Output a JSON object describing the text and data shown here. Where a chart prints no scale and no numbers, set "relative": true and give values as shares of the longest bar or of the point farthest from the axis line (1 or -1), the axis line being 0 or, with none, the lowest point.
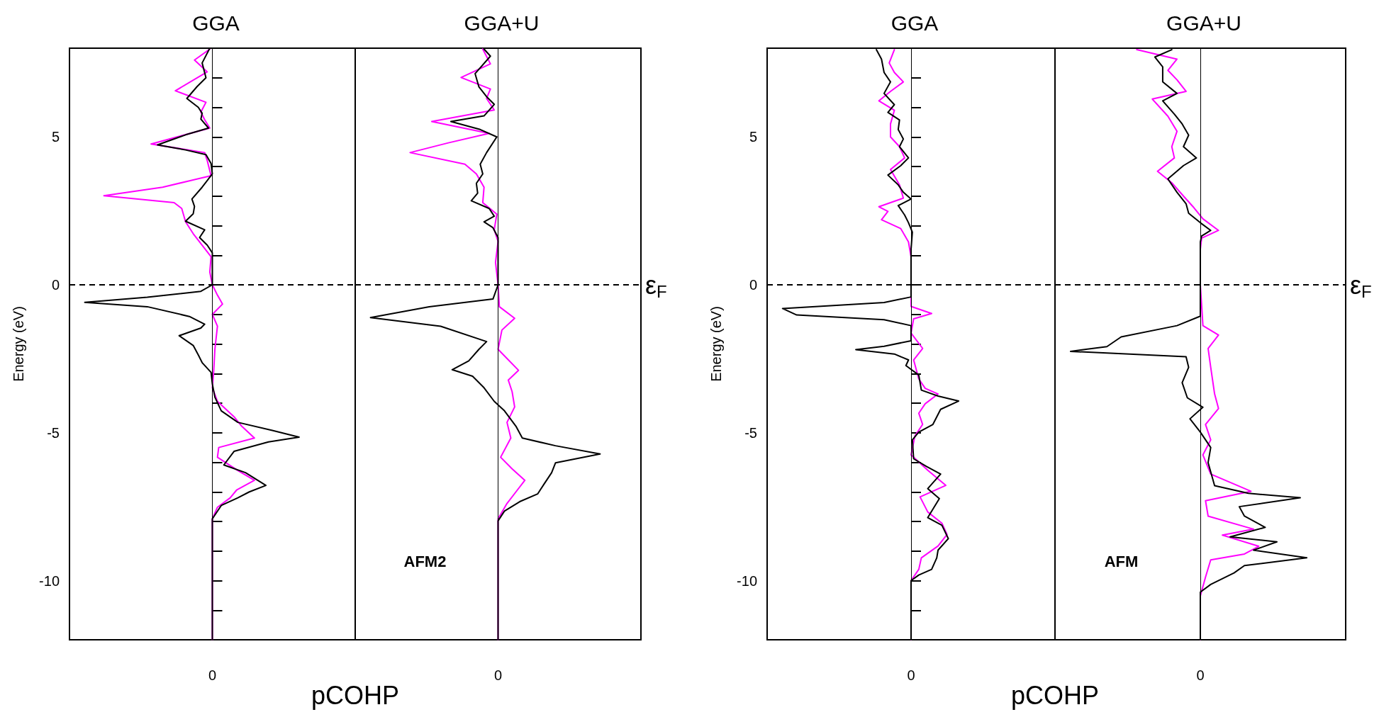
{
  "chart_data": [
    {
      "type": "line",
      "orientation": "horizontal",
      "relative": true,
      "title": "GGA",
      "ylabel": "Energy (eV)",
      "xlabel": "pCOHP",
      "ylim": [
        -12,
        8
      ],
      "yticks": [
        {
          "value": -11,
          "label": null
        },
        -10,
        {
          "value": -9,
          "label": null
        },
        {
          "value": -8,
          "label": null
        },
        {
          "value": -7,
          "label": null
        },
        {
          "value": -6,
          "label": null
        },
        -5,
        {
          "value": -4,
          "label": null
        },
        {
          "value": -3,
          "label": null
        },
        {
          "value": -2,
          "label": null
        },
        {
          "value": -1,
          "label": null
        },
        0,
        {
          "value": 1,
          "label": null
        },
        {
          "value": 2,
          "label": null
        },
        {
          "value": 3,
          "label": null
        },
        {
          "value": 4,
          "label": null
        },
        5,
        {
          "value": 6,
          "label": null
        },
        {
          "value": 7,
          "label": null
        }
      ],
      "marker": "none",
      "grid": false,
      "annotations": [
        "0"
      ],
      "ref_lines": [
        {
          "axis": "y",
          "value": 0,
          "color": "#000000",
          "line_style": "dashed"
        },
        {
          "axis": "x",
          "value": 0,
          "color": "#000000",
          "line_style": "solid"
        }
      ],
      "series": [
        {
          "color": "#000000",
          "x": [
            8.0,
            7.5,
            7.0,
            6.7,
            6.3,
            6.0,
            5.8,
            5.6,
            5.3,
            5.07,
            4.73,
            4.56,
            4.4,
            4.1,
            3.75,
            3.3,
            2.9,
            2.65,
            2.4,
            2.15,
            1.86,
            1.6,
            1.34,
            1.08,
            0,
            -0.22,
            -0.42,
            -0.59,
            -0.74,
            -1.07,
            -1.33,
            -1.46,
            -1.72,
            -2.05,
            -2.37,
            -2.63,
            -2.96,
            -3.35,
            -3.8,
            -4.26,
            -4.65,
            -4.92,
            -5.15,
            -5.31,
            -5.63,
            -6.09,
            -6.35,
            -6.78,
            -7.0,
            -7.2,
            -7.46,
            -7.91,
            -12
          ],
          "values": [
            -0.02,
            -0.08,
            -0.05,
            -0.12,
            -0.2,
            -0.11,
            -0.08,
            -0.09,
            -0.03,
            -0.21,
            -0.43,
            -0.21,
            -0.05,
            -0.01,
            0,
            -0.08,
            -0.16,
            -0.14,
            -0.15,
            -0.21,
            -0.06,
            -0.1,
            -0.04,
            0,
            0,
            -0.09,
            -0.51,
            -1,
            -0.51,
            -0.18,
            -0.06,
            -0.09,
            -0.26,
            -0.15,
            -0.11,
            -0.08,
            -0.01,
            0,
            0.02,
            0.07,
            0.2,
            0.47,
            0.68,
            0.44,
            0.17,
            0.09,
            0.26,
            0.42,
            0.29,
            0.2,
            0.07,
            0,
            0
          ]
        },
        {
          "color": "#ff00ff",
          "x": [
            7.97,
            7.6,
            7.2,
            6.56,
            6.17,
            5.84,
            5.58,
            5.3,
            4.76,
            4.47,
            4.2,
            3.69,
            3.3,
            3.01,
            2.78,
            2.58,
            2.13,
            1.73,
            1.34,
            0.95,
            0.43,
            0,
            -0.35,
            -0.65,
            -1.0,
            -1.4,
            -2.18,
            -2.96,
            -3.48,
            -3.94,
            -4.46,
            -4.78,
            -5.18,
            -5.5,
            -5.83,
            -6.28,
            -6.61,
            -6.94,
            -7.2,
            -7.52,
            -7.91,
            -12
          ],
          "values": [
            -0.02,
            -0.14,
            -0.04,
            -0.29,
            -0.05,
            -0.09,
            -0.06,
            -0.02,
            -0.48,
            -0.06,
            -0.04,
            -0.01,
            -0.39,
            -0.85,
            -0.3,
            -0.24,
            -0.21,
            -0.15,
            -0.08,
            -0.01,
            -0.02,
            0,
            0.04,
            0.08,
            0,
            0.04,
            0.02,
            0.01,
            0,
            0.04,
            0.17,
            0.23,
            0.33,
            0.05,
            0.04,
            0.2,
            0.33,
            0.19,
            0.14,
            0.04,
            0,
            0
          ]
        }
      ]
    },
    {
      "type": "line",
      "orientation": "horizontal",
      "relative": true,
      "title": "GGA+U",
      "ylim": [
        -12,
        8
      ],
      "marker": "none",
      "grid": false,
      "annotations": [
        "0",
        "AFM2"
      ],
      "ref_lines": [
        {
          "axis": "y",
          "value": 0,
          "label": "ε$_{F}$",
          "color": "#000000",
          "line_style": "dashed"
        },
        {
          "axis": "x",
          "value": 0,
          "color": "#000000",
          "line_style": "solid"
        }
      ],
      "series": [
        {
          "color": "#000000",
          "x": [
            7.97,
            7.73,
            7.14,
            6.69,
            6.36,
            6.1,
            5.71,
            5.52,
            5.25,
            5.0,
            4.47,
            4.08,
            3.75,
            3.43,
            3.1,
            2.84,
            2.58,
            2.32,
            2.13,
            1.93,
            1.6,
            0,
            -0.48,
            -0.74,
            -1.11,
            -1.4,
            -1.92,
            -2.18,
            -2.57,
            -2.87,
            -3.09,
            -3.48,
            -3.94,
            -4.26,
            -4.78,
            -5.18,
            -5.44,
            -5.72,
            -6.02,
            -6.35,
            -6.74,
            -7.07,
            -7.33,
            -7.65,
            -7.98,
            -12
          ],
          "values": [
            -0.11,
            -0.06,
            -0.18,
            -0.15,
            -0.09,
            -0.03,
            -0.11,
            -0.37,
            -0.14,
            -0.01,
            -0.09,
            -0.14,
            -0.12,
            -0.17,
            -0.16,
            -0.21,
            -0.07,
            -0.03,
            -0.11,
            -0.04,
            0,
            0,
            -0.04,
            -0.54,
            -1,
            -0.45,
            -0.09,
            -0.15,
            -0.23,
            -0.36,
            -0.2,
            -0.11,
            -0.03,
            0.05,
            0.14,
            0.19,
            0.45,
            0.8,
            0.45,
            0.42,
            0.36,
            0.31,
            0.17,
            0.05,
            0,
            0
          ]
        },
        {
          "color": "#ff00ff",
          "x": [
            7.97,
            7.47,
            7.01,
            6.62,
            6.3,
            5.91,
            5.52,
            5.12,
            4.8,
            4.47,
            4.08,
            3.75,
            3.3,
            2.78,
            2.39,
            1.86,
            1.47,
            0.76,
            0,
            -0.74,
            -1.13,
            -1.53,
            -2.18,
            -2.89,
            -3.22,
            -3.61,
            -4.13,
            -4.65,
            -5.18,
            -5.83,
            -6.22,
            -6.61,
            -7.0,
            -7.39,
            -7.91,
            -12
          ],
          "values": [
            -0.12,
            -0.06,
            -0.29,
            -0.06,
            -0.09,
            -0.03,
            -0.52,
            -0.07,
            -0.39,
            -0.69,
            -0.26,
            -0.17,
            -0.11,
            -0.12,
            -0.01,
            -0.03,
            0,
            -0.02,
            0,
            0.01,
            0.13,
            0.03,
            0,
            0.16,
            0.08,
            0.11,
            0.13,
            0.07,
            0.1,
            0.02,
            0.11,
            0.21,
            0.14,
            0.07,
            0,
            0
          ]
        }
      ]
    },
    {
      "type": "line",
      "orientation": "horizontal",
      "relative": true,
      "title": "GGA",
      "ylabel": "Energy (eV)",
      "xlabel": "pCOHP",
      "ylim": [
        -12,
        8
      ],
      "yticks": [
        {
          "value": -11,
          "label": null
        },
        -10,
        {
          "value": -9,
          "label": null
        },
        {
          "value": -8,
          "label": null
        },
        {
          "value": -7,
          "label": null
        },
        {
          "value": -6,
          "label": null
        },
        -5,
        {
          "value": -4,
          "label": null
        },
        {
          "value": -3,
          "label": null
        },
        {
          "value": -2,
          "label": null
        },
        {
          "value": -1,
          "label": null
        },
        0,
        {
          "value": 1,
          "label": null
        },
        {
          "value": 2,
          "label": null
        },
        {
          "value": 3,
          "label": null
        },
        {
          "value": 4,
          "label": null
        },
        5,
        {
          "value": 6,
          "label": null
        },
        {
          "value": 7,
          "label": null
        }
      ],
      "marker": "none",
      "grid": false,
      "annotations": [
        "0"
      ],
      "ref_lines": [
        {
          "axis": "y",
          "value": 0,
          "color": "#000000",
          "line_style": "dashed"
        },
        {
          "axis": "x",
          "value": 0,
          "color": "#000000",
          "line_style": "solid"
        }
      ],
      "series": [
        {
          "color": "#000000",
          "x": [
            7.95,
            7.63,
            7.18,
            6.86,
            6.47,
            6.09,
            5.83,
            5.57,
            5.25,
            4.93,
            4.67,
            4.29,
            4.03,
            3.71,
            3.38,
            3.13,
            2.9,
            2.68,
            2.36,
            2.1,
            1.78,
            1.2,
            0,
            -0.41,
            -0.6,
            -0.8,
            -1.02,
            -1.18,
            -1.38,
            -1.89,
            -2.08,
            -2.19,
            -2.34,
            -2.54,
            -2.73,
            -3.05,
            -3.56,
            -3.76,
            -3.93,
            -4.21,
            -4.72,
            -4.98,
            -5.24,
            -5.88,
            -6.14,
            -6.4,
            -6.89,
            -7.23,
            -7.87,
            -8.13,
            -8.58,
            -8.97,
            -9.23,
            -9.62,
            -9.81,
            -10.0,
            -12
          ],
          "values": [
            -0.27,
            -0.23,
            -0.21,
            -0.16,
            -0.21,
            -0.13,
            -0.18,
            -0.09,
            -0.1,
            -0.06,
            -0.09,
            -0.02,
            -0.08,
            -0.18,
            -0.1,
            -0.06,
            0,
            -0.1,
            -0.05,
            -0.02,
            0.01,
            0,
            0,
            0,
            -0.21,
            -1,
            -0.89,
            -0.21,
            0,
            0,
            -0.21,
            -0.43,
            -0.13,
            -0.02,
            -0.04,
            0.06,
            0.08,
            0.21,
            0.37,
            0.23,
            0.17,
            0.06,
            0.01,
            0.02,
            0.12,
            0.23,
            0.13,
            0.22,
            0.13,
            0.24,
            0.29,
            0.21,
            0.2,
            0.16,
            0.06,
            0,
            0
          ]
        },
        {
          "color": "#ff00ff",
          "x": [
            7.95,
            7.5,
            7.18,
            6.86,
            6.54,
            6.22,
            5.9,
            5.44,
            5.0,
            4.67,
            4.29,
            3.9,
            3.38,
            2.93,
            2.64,
            2.48,
            2.2,
            1.9,
            1.45,
            0.94,
            0,
            -0.73,
            -0.97,
            -1.15,
            -1.63,
            -2.15,
            -2.54,
            -3.18,
            -3.5,
            -3.69,
            -4.02,
            -4.34,
            -4.72,
            -5.11,
            -5.75,
            -6.27,
            -6.78,
            -7.17,
            -7.68,
            -8.06,
            -8.44,
            -8.83,
            -9.23,
            -9.62,
            -10.0,
            -12
          ],
          "values": [
            -0.13,
            -0.17,
            -0.13,
            -0.06,
            -0.16,
            -0.25,
            -0.13,
            -0.16,
            -0.16,
            -0.09,
            -0.05,
            -0.16,
            -0.09,
            -0.06,
            -0.25,
            -0.18,
            -0.23,
            -0.08,
            -0.02,
            0,
            0,
            0,
            0.16,
            0.02,
            0,
            0.09,
            0.02,
            0.06,
            0.11,
            0.21,
            0.11,
            0.06,
            0.09,
            0.03,
            0,
            0.13,
            0.27,
            0.07,
            0.13,
            0.24,
            0.28,
            0.21,
            0.08,
            0.06,
            0,
            0
          ]
        }
      ]
    },
    {
      "type": "line",
      "orientation": "horizontal",
      "relative": true,
      "title": "GGA+U",
      "ylim": [
        -12,
        8
      ],
      "marker": "none",
      "grid": false,
      "annotations": [
        "0",
        "AFM"
      ],
      "ref_lines": [
        {
          "axis": "y",
          "value": 0,
          "label": "ε$_{F}$",
          "color": "#000000",
          "line_style": "dashed"
        },
        {
          "axis": "x",
          "value": 0,
          "color": "#000000",
          "line_style": "solid"
        }
      ],
      "series": [
        {
          "color": "#000000",
          "x": [
            7.95,
            7.7,
            7.37,
            6.86,
            6.47,
            6.22,
            5.77,
            5.44,
            5.06,
            4.67,
            4.29,
            4.03,
            3.58,
            3.13,
            2.74,
            2.42,
            2.1,
            1.84,
            1.65,
            1.45,
            0,
            -1.06,
            -1.38,
            -1.76,
            -2.09,
            -2.25,
            -2.43,
            -2.79,
            -3.31,
            -3.82,
            -4.14,
            -4.53,
            -4.98,
            -5.5,
            -6.01,
            -6.79,
            -7.05,
            -7.2,
            -7.5,
            -7.82,
            -8.2,
            -8.52,
            -8.69,
            -8.97,
            -9.23,
            -9.49,
            -9.74,
            -10.13,
            -10.39,
            -12
          ],
          "values": [
            -0.22,
            -0.35,
            -0.29,
            -0.29,
            -0.18,
            -0.29,
            -0.2,
            -0.14,
            -0.09,
            -0.13,
            -0.03,
            -0.13,
            -0.25,
            -0.18,
            -0.11,
            -0.09,
            0,
            0.08,
            0.01,
            0,
            0,
            0,
            -0.18,
            -0.61,
            -0.72,
            -1,
            -0.11,
            -0.09,
            -0.14,
            -0.1,
            0.02,
            -0.08,
            0,
            0.08,
            0.06,
            0.11,
            0.37,
            0.77,
            0.3,
            0.34,
            0.5,
            0.23,
            0.59,
            0.41,
            0.82,
            0.34,
            0.26,
            0.08,
            0,
            0
          ]
        },
        {
          "color": "#ff00ff",
          "x": [
            7.95,
            7.63,
            7.25,
            6.93,
            6.54,
            6.28,
            5.7,
            5.19,
            4.67,
            4.29,
            3.84,
            3.45,
            3.0,
            2.61,
            2.23,
            1.84,
            1.58,
            1.2,
            0,
            -1.38,
            -1.7,
            -2.15,
            -2.79,
            -3.69,
            -4.18,
            -4.72,
            -5.24,
            -5.75,
            -6.4,
            -6.98,
            -7.3,
            -7.82,
            -8.26,
            -8.46,
            -8.84,
            -9.1,
            -9.3,
            -9.88,
            -10.52,
            -12
          ],
          "values": [
            -0.49,
            -0.18,
            -0.25,
            -0.18,
            -0.11,
            -0.37,
            -0.25,
            -0.18,
            -0.22,
            -0.2,
            -0.33,
            -0.22,
            -0.13,
            -0.05,
            0.02,
            0.14,
            0.01,
            0,
            0,
            0.02,
            0.14,
            0.06,
            0.08,
            0.11,
            0.14,
            0.04,
            0.08,
            0.02,
            0.08,
            0.39,
            0.04,
            0.06,
            0.41,
            0.17,
            0.45,
            0.34,
            0.08,
            0.04,
            0,
            0
          ]
        }
      ]
    }
  ]
}
